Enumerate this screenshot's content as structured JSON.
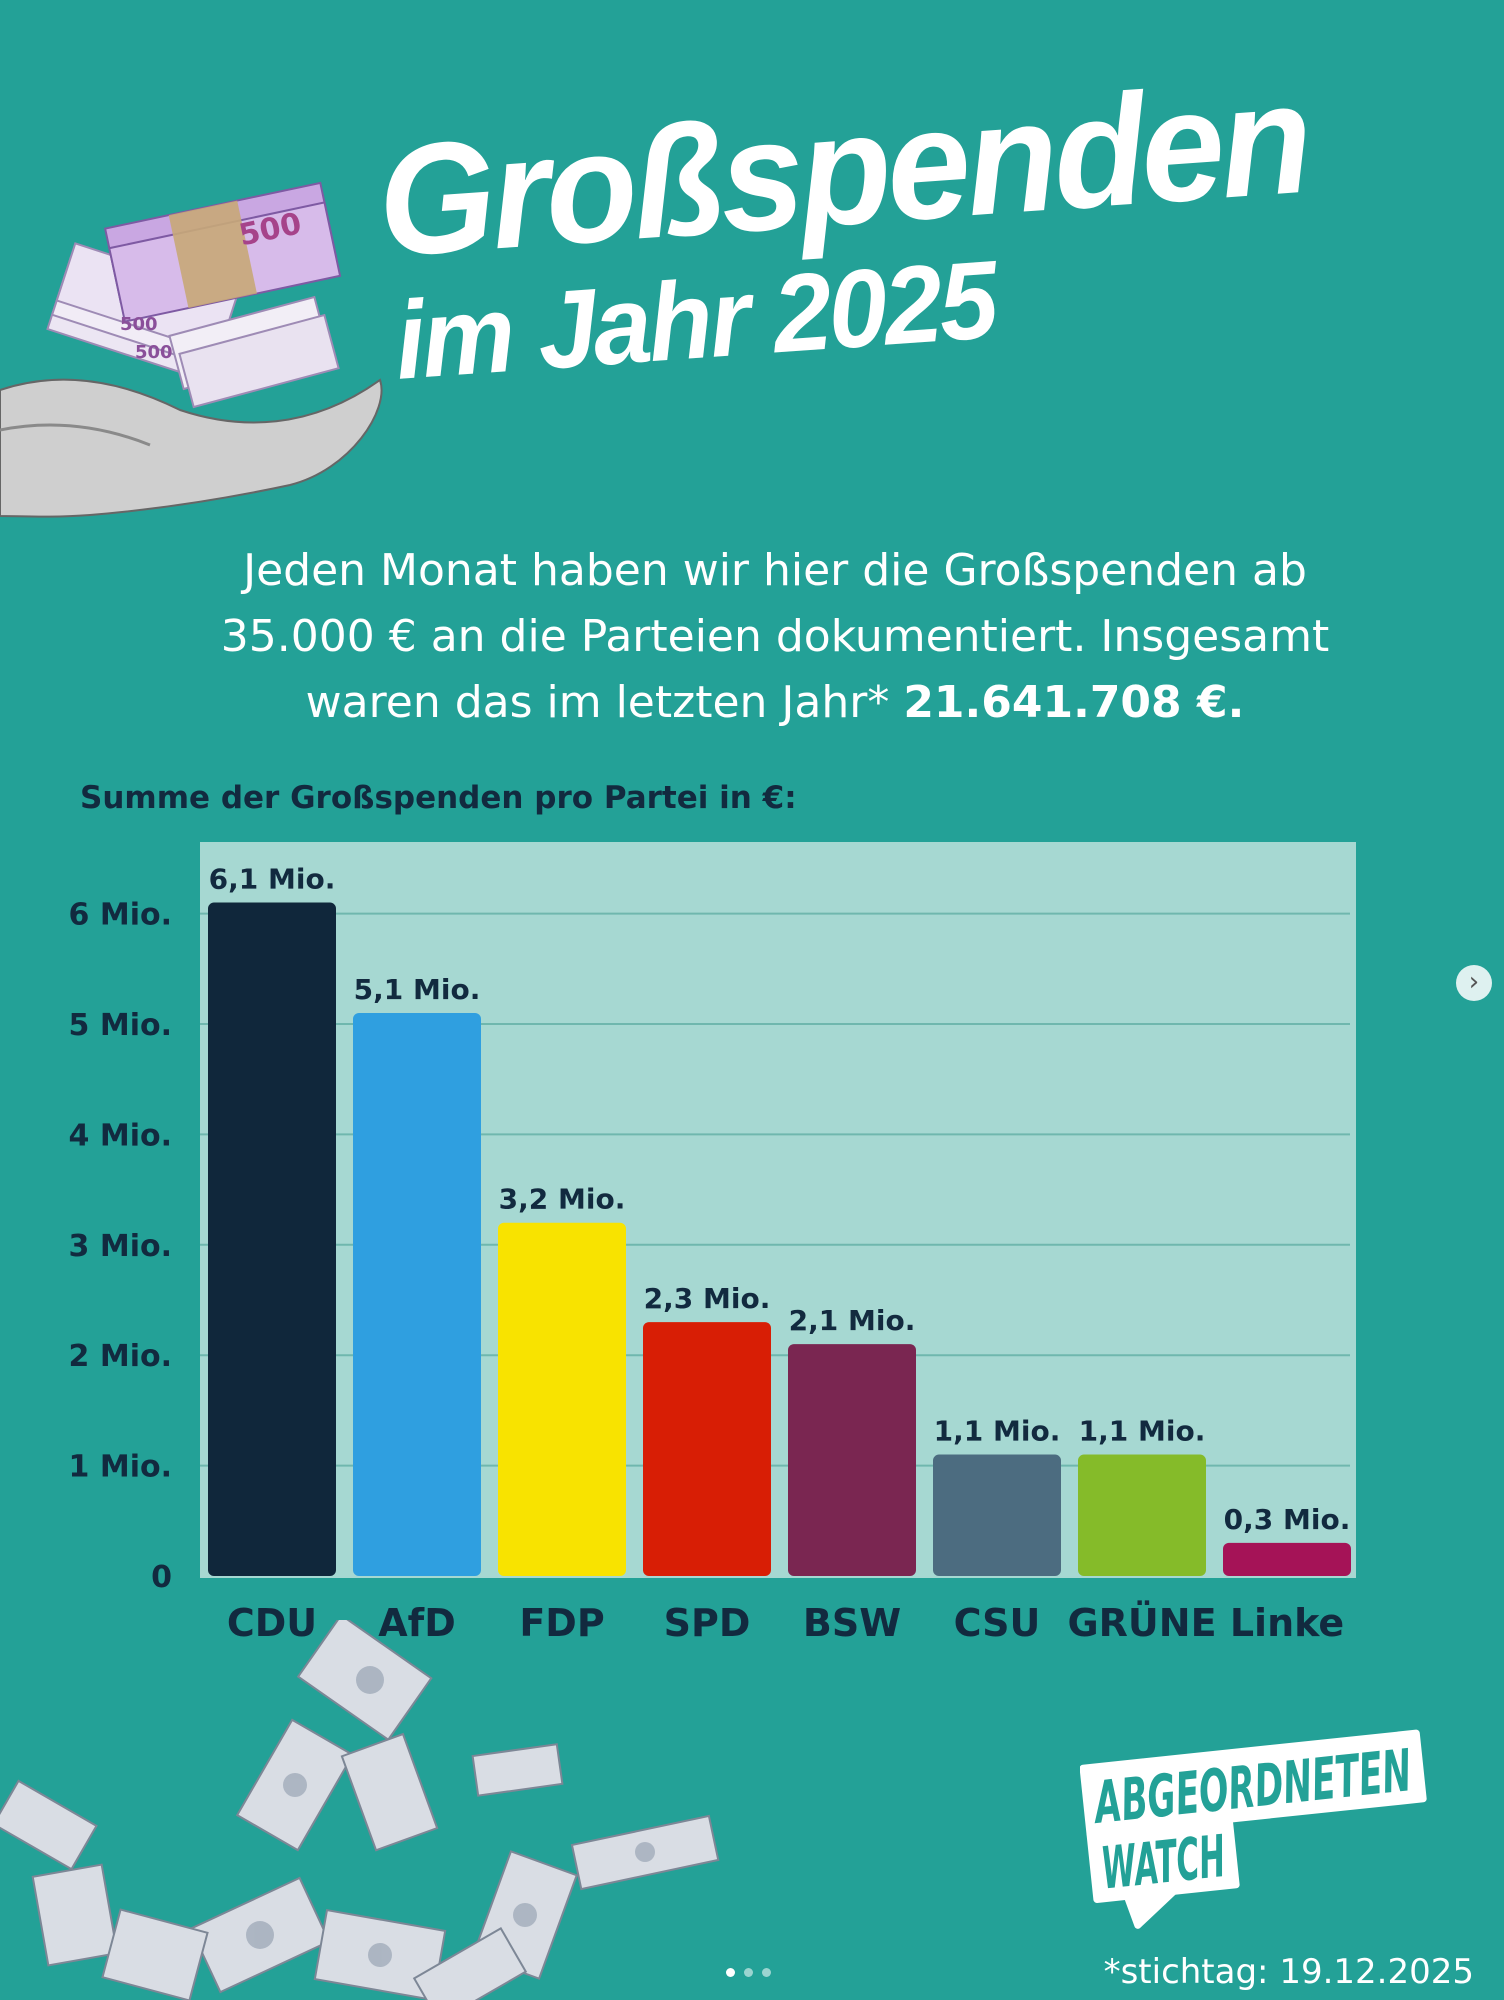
{
  "header": {
    "title_line1": "Großspenden",
    "title_line2": "im Jahr 2025"
  },
  "intro": {
    "text_line1": "Jeden Monat haben wir hier die Großspenden ab",
    "text_line2": "35.000 € an die Parteien dokumentiert. Insgesamt",
    "text_line3_prefix": "waren das im letzten Jahr* ",
    "total": "21.641.708 €."
  },
  "chart_data": {
    "type": "bar",
    "title": "Summe der Großspenden pro Partei in €:",
    "categories": [
      "CDU",
      "AfD",
      "FDP",
      "SPD",
      "BSW",
      "CSU",
      "GRÜNE",
      "Linke"
    ],
    "values": [
      6.1,
      5.1,
      3.2,
      2.3,
      2.1,
      1.1,
      1.1,
      0.3
    ],
    "value_labels": [
      "6,1 Mio.",
      "5,1 Mio.",
      "3,2 Mio.",
      "2,3 Mio.",
      "2,1 Mio.",
      "1,1 Mio.",
      "1,1 Mio.",
      "0,3 Mio."
    ],
    "colors": [
      "#10273b",
      "#2f9fe0",
      "#f8e300",
      "#d81e05",
      "#7a2651",
      "#4c6c80",
      "#85bb29",
      "#a51357"
    ],
    "y_ticks": [
      0,
      1,
      2,
      3,
      4,
      5,
      6
    ],
    "y_tick_labels": [
      "0",
      "1 Mio.",
      "2 Mio.",
      "3 Mio.",
      "4 Mio.",
      "5 Mio.",
      "6 Mio."
    ],
    "ylim": [
      0,
      6.6
    ],
    "grid": true,
    "unit": "Mio. €"
  },
  "logo": {
    "line1": "ABGEORDNETEN",
    "line2": "WATCH"
  },
  "footer": {
    "stichtag": "*stichtag: 19.12.2025"
  },
  "colors": {
    "background": "#23a197",
    "plot_background": "#a6d8d2",
    "text_dark": "#122a3f"
  },
  "icons": {
    "money_hand": "money-hand-illustration",
    "falling_money": "falling-banknotes-illustration",
    "next": "chevron-right-icon"
  }
}
